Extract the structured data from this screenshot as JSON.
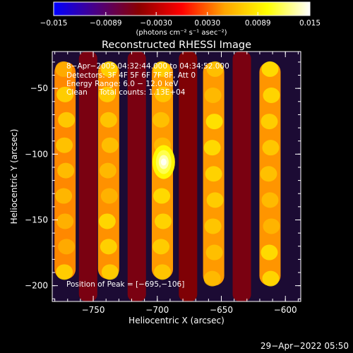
{
  "chart_data": {
    "type": "heatmap",
    "title": "Reconstructed RHESSI Image",
    "xlabel": "Heliocentric X (arcsec)",
    "ylabel": "Heliocentric Y (arcsec)",
    "xlim": [
      -782,
      -588
    ],
    "ylim": [
      -212,
      -22
    ],
    "xticks": [
      -750,
      -700,
      -650,
      -600
    ],
    "xtick_labels": [
      "−750",
      "−700",
      "−650",
      "−600"
    ],
    "yticks": [
      -50,
      -100,
      -150,
      -200
    ],
    "ytick_labels": [
      "−50",
      "−100",
      "−150",
      "−200"
    ],
    "colorbar": {
      "min": -0.015,
      "max": 0.015,
      "ticks": [
        -0.015,
        -0.0089,
        -0.003,
        0.003,
        0.0089,
        0.015
      ],
      "tick_labels": [
        "−0.015",
        "−0.0089",
        "−0.0030",
        "0.0030",
        "0.0089",
        "0.015"
      ],
      "units": "(photons cm⁻² s⁻¹ asec⁻²)",
      "colormap": [
        "#0000ff",
        "#4b0082",
        "#8b0000",
        "#ff0000",
        "#ffa500",
        "#ffff00",
        "#ffffff"
      ]
    },
    "annotations": {
      "time_range": "8−Apr−2005 04:32:44.000 to 04:34:52.000",
      "detectors": "Detectors: 3F 4F 5F 6F 7F 8F, Att 0",
      "energy": "Energy Range: 6.0 − 12.0 keV",
      "clean": "Clean     Total counts: 1.13E+04",
      "peak": "Position of Peak = [−695,−106]"
    },
    "peak_position": [
      -695,
      -106
    ],
    "bright_bands": [
      {
        "x": -772,
        "y_range": [
          -195,
          -30
        ],
        "level": 0.0075
      },
      {
        "x": -738,
        "y_range": [
          -195,
          -30
        ],
        "level": 0.008
      },
      {
        "x": -696,
        "y_range": [
          -195,
          -30
        ],
        "level": 0.0085
      },
      {
        "x": -656,
        "y_range": [
          -200,
          -30
        ],
        "level": 0.0085
      },
      {
        "x": -612,
        "y_range": [
          -200,
          -30
        ],
        "level": 0.0082
      }
    ],
    "dark_bands": [
      {
        "x": -754,
        "level": -0.0055
      },
      {
        "x": -716,
        "level": -0.0055
      },
      {
        "x": -676,
        "level": -0.005
      },
      {
        "x": -634,
        "level": -0.0055
      }
    ],
    "timestamp": "29−Apr−2022 05:50"
  }
}
